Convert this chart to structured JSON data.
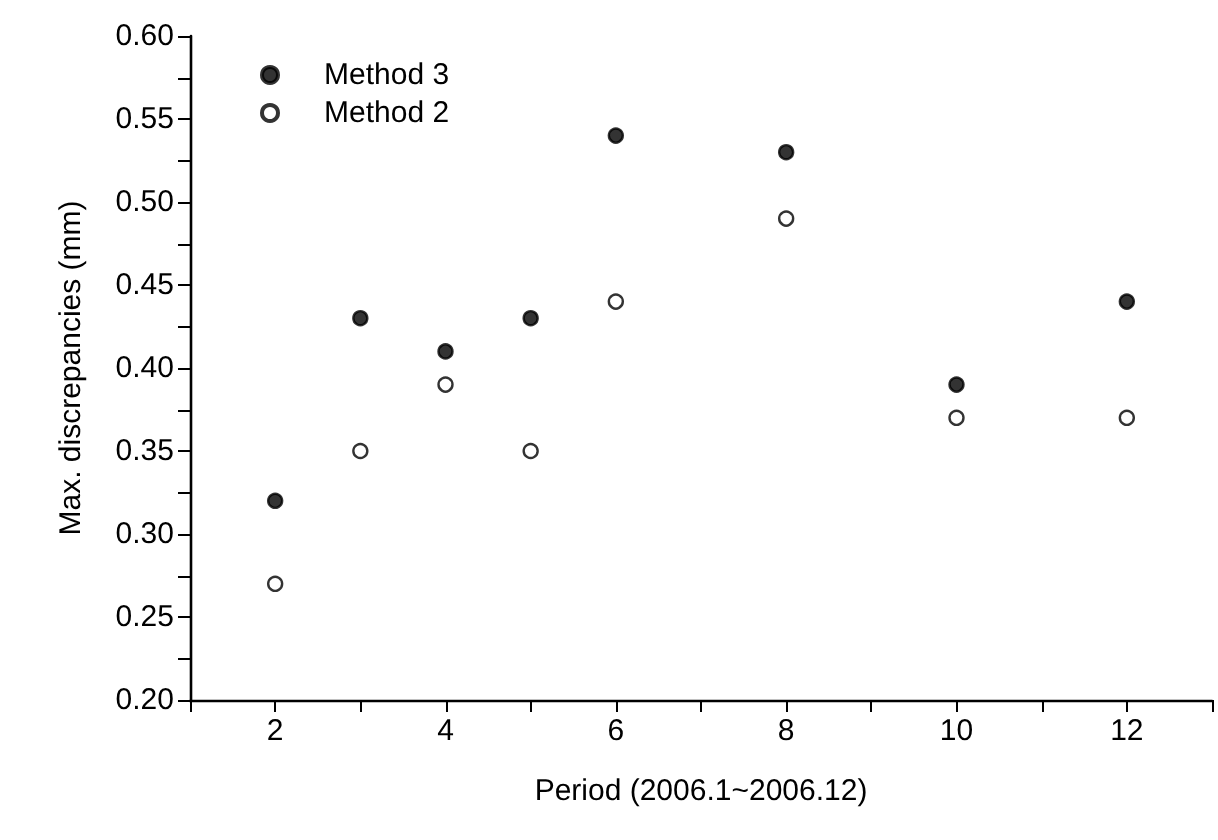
{
  "chart_data": {
    "type": "scatter",
    "xlabel": "Period (2006.1~2006.12)",
    "ylabel": "Max. discrepancies (mm)",
    "x": [
      2,
      3,
      4,
      5,
      6,
      8,
      10,
      12
    ],
    "series": [
      {
        "name": "Method 3",
        "color": "#000000",
        "marker": "circle",
        "values": [
          0.32,
          0.43,
          0.41,
          0.43,
          0.54,
          0.53,
          0.39,
          0.44
        ]
      },
      {
        "name": "Method 2",
        "color": "#ffffff",
        "marker": "circle",
        "values": [
          0.27,
          0.35,
          0.39,
          0.35,
          0.44,
          0.49,
          0.37,
          0.37
        ]
      }
    ],
    "xlim": [
      1,
      13
    ],
    "xticks": [
      {
        "value": 1,
        "label": null
      },
      2,
      {
        "value": 3,
        "label": null
      },
      4,
      {
        "value": 5,
        "label": null
      },
      6,
      {
        "value": 7,
        "label": null
      },
      8,
      {
        "value": 9,
        "label": null
      },
      10,
      {
        "value": 11,
        "label": null
      },
      12,
      {
        "value": 13,
        "label": null
      }
    ],
    "ylim": [
      0.2,
      0.6
    ],
    "yticks": [
      {
        "value": 0.2,
        "label": "0.20"
      },
      {
        "value": 0.225,
        "label": null
      },
      {
        "value": 0.25,
        "label": "0.25"
      },
      {
        "value": 0.275,
        "label": null
      },
      {
        "value": 0.3,
        "label": "0.30"
      },
      {
        "value": 0.325,
        "label": null
      },
      {
        "value": 0.35,
        "label": "0.35"
      },
      {
        "value": 0.375,
        "label": null
      },
      {
        "value": 0.4,
        "label": "0.40"
      },
      {
        "value": 0.425,
        "label": null
      },
      {
        "value": 0.45,
        "label": "0.45"
      },
      {
        "value": 0.475,
        "label": null
      },
      {
        "value": 0.5,
        "label": "0.50"
      },
      {
        "value": 0.525,
        "label": null
      },
      {
        "value": 0.55,
        "label": "0.55"
      },
      {
        "value": 0.575,
        "label": null
      },
      {
        "value": 0.6,
        "label": "0.60"
      }
    ],
    "grid": false,
    "legend": "top left"
  }
}
